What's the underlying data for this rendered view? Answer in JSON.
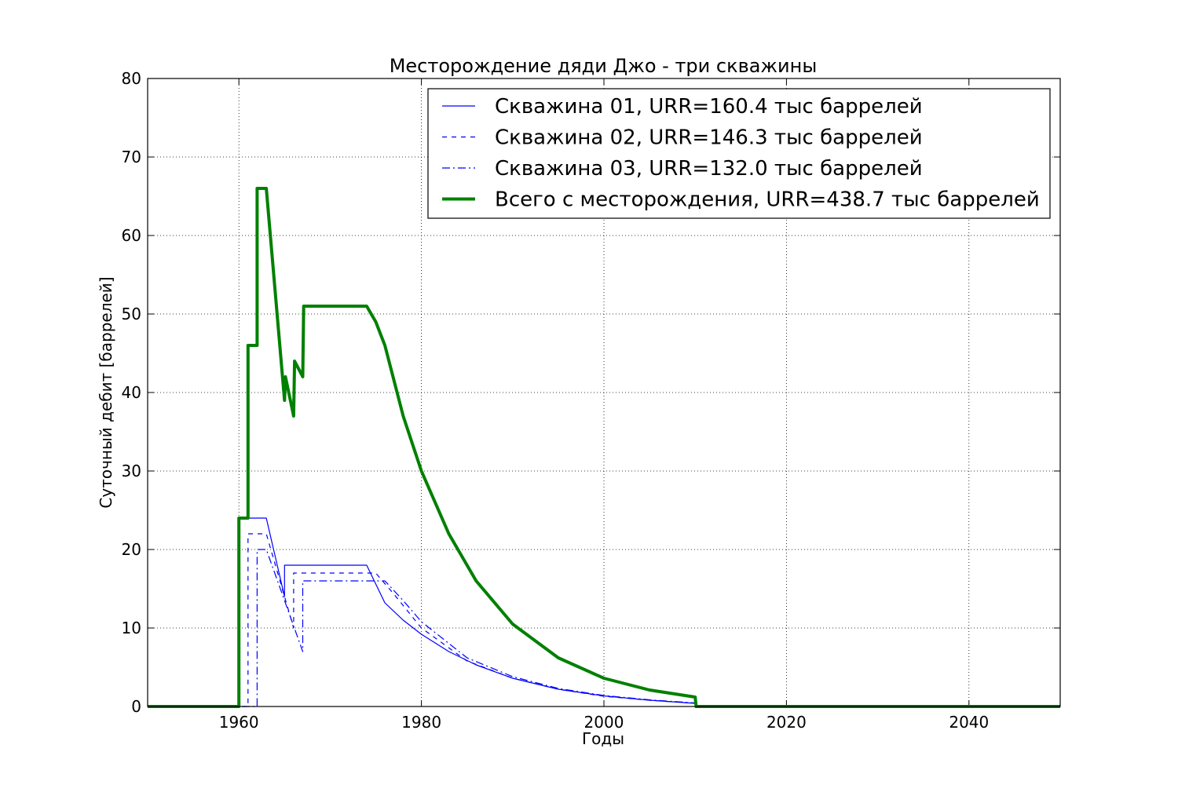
{
  "chart_data": {
    "type": "line",
    "title": "Месторождение дяди Джо - три скважины",
    "xlabel": "Годы",
    "ylabel": "Суточный дебит [баррелей]",
    "xlim": [
      1950,
      2050
    ],
    "ylim": [
      0,
      80
    ],
    "xticks": [
      1960,
      1980,
      2000,
      2020,
      2040
    ],
    "yticks": [
      0,
      10,
      20,
      30,
      40,
      50,
      60,
      70,
      80
    ],
    "grid": true,
    "legend_position": "top-right",
    "series": [
      {
        "name": "Скважина 01, URR=160.4 тыс баррелей",
        "color": "#0000ff",
        "style": "solid",
        "x": [
          1950,
          1960,
          1960,
          1963,
          1965,
          1965,
          1974,
          1976,
          1978,
          1980,
          1983,
          1986,
          1990,
          1995,
          2000,
          2005,
          2010
        ],
        "y": [
          0,
          0,
          24,
          24,
          14,
          18,
          18,
          13.2,
          11.0,
          9.2,
          7.0,
          5.3,
          3.6,
          2.2,
          1.35,
          0.8,
          0.4
        ]
      },
      {
        "name": "Скважина 02, URR=146.3 тыс баррелей",
        "color": "#0000ff",
        "style": "dashed",
        "x": [
          1950,
          1961,
          1961,
          1963,
          1966,
          1966,
          1975,
          1977,
          1980,
          1985,
          1990,
          1995,
          2000,
          2005,
          2010
        ],
        "y": [
          0,
          0,
          22,
          22,
          10,
          17,
          17,
          14.3,
          10.0,
          5.8,
          3.6,
          2.2,
          1.3,
          0.8,
          0.4
        ]
      },
      {
        "name": "Скважина 03, URR=132.0 тыс баррелей",
        "color": "#0000ff",
        "style": "dashdot",
        "x": [
          1950,
          1962,
          1962,
          1963,
          1967,
          1967,
          1976,
          1978,
          1980,
          1985,
          1990,
          1995,
          2000,
          2005,
          2010
        ],
        "y": [
          0,
          0,
          20,
          20,
          7,
          16,
          16,
          13.5,
          10.8,
          6.2,
          3.8,
          2.3,
          1.4,
          0.85,
          0.45
        ]
      },
      {
        "name": "Всего с месторождения, URR=438.7 тыс баррелей",
        "color": "#008000",
        "style": "solid-thick",
        "x": [
          1950,
          1960,
          1960,
          1961,
          1961,
          1962,
          1962,
          1963,
          1965,
          1965.1,
          1966,
          1966.1,
          1967,
          1967.1,
          1974,
          1975,
          1976,
          1978,
          1980,
          1983,
          1986,
          1990,
          1995,
          2000,
          2005,
          2010,
          2010.1,
          2050
        ],
        "y": [
          0,
          0,
          24,
          24,
          46,
          46,
          66,
          66,
          39,
          42,
          37,
          44,
          42,
          51,
          51,
          49,
          46,
          37,
          30,
          22,
          16,
          10.5,
          6.2,
          3.6,
          2.1,
          1.2,
          0,
          0
        ]
      }
    ]
  }
}
